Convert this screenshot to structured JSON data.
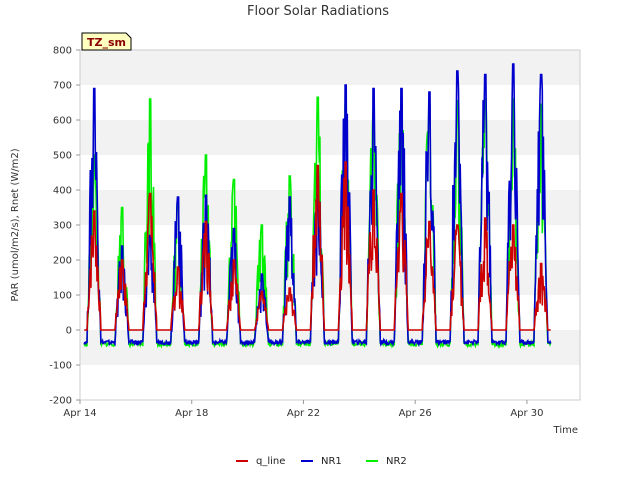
{
  "chart_data": {
    "type": "line",
    "title": "Floor Solar Radiations",
    "xlabel": "Time",
    "ylabel": "PAR (umol/m2/s), Rnet (W/m2)",
    "badge": "TZ_sm",
    "xlim": [
      14,
      31.9
    ],
    "ylim": [
      -200,
      800
    ],
    "yticks": [
      -200,
      -100,
      0,
      100,
      200,
      300,
      400,
      500,
      600,
      700,
      800
    ],
    "xticks": [
      {
        "value": 14,
        "label": "Apr 14"
      },
      {
        "value": 18,
        "label": "Apr 18"
      },
      {
        "value": 22,
        "label": "Apr 22"
      },
      {
        "value": 26,
        "label": "Apr 26"
      },
      {
        "value": 30,
        "label": "Apr 30"
      }
    ],
    "band_ranges": [
      [
        -100,
        0
      ],
      [
        100,
        200
      ],
      [
        300,
        400
      ],
      [
        500,
        600
      ],
      [
        700,
        800
      ]
    ],
    "days": [
      14.5,
      15.5,
      16.5,
      17.5,
      18.5,
      19.5,
      20.5,
      21.5,
      22.5,
      23.5,
      24.5,
      25.5,
      26.5,
      27.5,
      28.5,
      29.5,
      30.5
    ],
    "series": [
      {
        "name": "q_line",
        "color": "#cc0000",
        "night": 0,
        "peaks": [
          340,
          200,
          390,
          180,
          310,
          200,
          110,
          120,
          470,
          480,
          400,
          390,
          310,
          300,
          320,
          300,
          190
        ]
      },
      {
        "name": "NR1",
        "color": "#0000cc",
        "night": -35,
        "peaks": [
          690,
          240,
          270,
          380,
          385,
          290,
          160,
          380,
          450,
          700,
          690,
          690,
          680,
          740,
          730,
          760,
          730
        ]
      },
      {
        "name": "NR2",
        "color": "#00ee00",
        "night": -40,
        "peaks": [
          500,
          350,
          660,
          360,
          500,
          430,
          300,
          440,
          665,
          645,
          630,
          645,
          650,
          655,
          660,
          660,
          645
        ]
      }
    ],
    "legend": [
      {
        "name": "q_line",
        "color": "#cc0000"
      },
      {
        "name": "NR1",
        "color": "#0000cc"
      },
      {
        "name": "NR2",
        "color": "#00ee00"
      }
    ]
  }
}
